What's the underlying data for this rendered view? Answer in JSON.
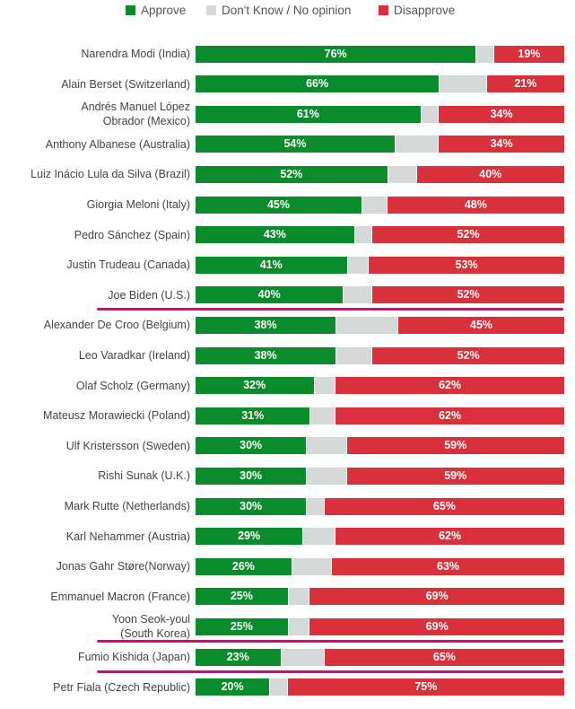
{
  "chart_data": {
    "type": "stacked-bar-horizontal",
    "title": "",
    "legend": [
      {
        "key": "approve",
        "label": "Approve",
        "color": "#0a8b2c"
      },
      {
        "key": "dont_know",
        "label": "Don't Know / No opinion",
        "color": "#d5d9d8"
      },
      {
        "key": "disapprove",
        "label": "Disapprove",
        "color": "#d9313b"
      }
    ],
    "legend_position": "top",
    "rows": [
      {
        "label": [
          "Narendra Modi (India)"
        ],
        "approve": 76,
        "disapprove": 19,
        "highlight": false
      },
      {
        "label": [
          "Alain Berset (Switzerland)"
        ],
        "approve": 66,
        "disapprove": 21,
        "highlight": false
      },
      {
        "label": [
          "Andrés Manuel López",
          "Obrador (Mexico)"
        ],
        "approve": 61,
        "disapprove": 34,
        "highlight": false
      },
      {
        "label": [
          "Anthony Albanese (Australia)"
        ],
        "approve": 54,
        "disapprove": 34,
        "highlight": false
      },
      {
        "label": [
          "Luiz Inácio Lula da Silva (Brazil)"
        ],
        "approve": 52,
        "disapprove": 40,
        "highlight": false
      },
      {
        "label": [
          "Giorgia Meloni (Italy)"
        ],
        "approve": 45,
        "disapprove": 48,
        "highlight": false
      },
      {
        "label": [
          "Pedro Sánchez (Spain)"
        ],
        "approve": 43,
        "disapprove": 52,
        "highlight": false
      },
      {
        "label": [
          "Justin Trudeau (Canada)"
        ],
        "approve": 41,
        "disapprove": 53,
        "highlight": false
      },
      {
        "label": [
          "Joe Biden (U.S.)"
        ],
        "approve": 40,
        "disapprove": 52,
        "highlight": true
      },
      {
        "label": [
          "Alexander De Croo (Belgium)"
        ],
        "approve": 38,
        "disapprove": 45,
        "highlight": false
      },
      {
        "label": [
          "Leo Varadkar (Ireland)"
        ],
        "approve": 38,
        "disapprove": 52,
        "highlight": false
      },
      {
        "label": [
          "Olaf Scholz (Germany)"
        ],
        "approve": 32,
        "disapprove": 62,
        "highlight": false
      },
      {
        "label": [
          "Mateusz Morawiecki (Poland)"
        ],
        "approve": 31,
        "disapprove": 62,
        "highlight": false
      },
      {
        "label": [
          "Ulf Kristersson (Sweden)"
        ],
        "approve": 30,
        "disapprove": 59,
        "highlight": false
      },
      {
        "label": [
          "Rishi Sunak (U.K.)"
        ],
        "approve": 30,
        "disapprove": 59,
        "highlight": false
      },
      {
        "label": [
          "Mark Rutte (Netherlands)"
        ],
        "approve": 30,
        "disapprove": 65,
        "highlight": false
      },
      {
        "label": [
          "Karl Nehammer (Austria)"
        ],
        "approve": 29,
        "disapprove": 62,
        "highlight": false
      },
      {
        "label": [
          "Jonas Gahr Støre(Norway)"
        ],
        "approve": 26,
        "disapprove": 63,
        "highlight": false
      },
      {
        "label": [
          "Emmanuel Macron (France)"
        ],
        "approve": 25,
        "disapprove": 69,
        "highlight": false
      },
      {
        "label": [
          "Yoon Seok-youl",
          "(South Korea)"
        ],
        "approve": 25,
        "disapprove": 69,
        "highlight": true
      },
      {
        "label": [
          "Fumio Kishida (Japan)"
        ],
        "approve": 23,
        "disapprove": 65,
        "highlight": true
      },
      {
        "label": [
          "Petr Fiala (Czech Republic)"
        ],
        "approve": 20,
        "disapprove": 75,
        "highlight": false
      }
    ],
    "value_suffix": "%",
    "xlim": [
      0,
      100
    ]
  }
}
